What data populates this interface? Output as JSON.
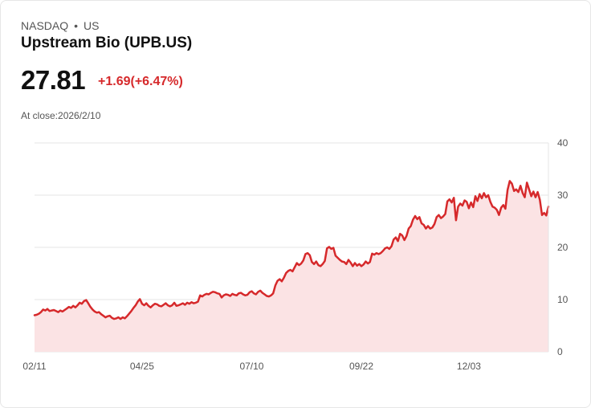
{
  "header": {
    "exchange": "NASDAQ",
    "region": "US",
    "title": "Upstream Bio (UPB.US)",
    "price": "27.81",
    "change": "+1.69(+6.47%)",
    "close_label": "At close:2026/2/10"
  },
  "colors": {
    "line": "#d6292b",
    "fill": "#fbe3e4",
    "grid": "#e6e6e6"
  },
  "chart_data": {
    "type": "area",
    "title": "",
    "xlabel": "",
    "ylabel": "",
    "ylim": [
      0,
      40
    ],
    "y_ticks": [
      0,
      10,
      20,
      30,
      40
    ],
    "x_tick_labels": [
      {
        "label": "02/11",
        "index": 0
      },
      {
        "label": "04/25",
        "index": 50
      },
      {
        "label": "07/10",
        "index": 101
      },
      {
        "label": "09/22",
        "index": 152
      },
      {
        "label": "12/03",
        "index": 202
      }
    ],
    "series": [
      {
        "name": "UPB.US",
        "values": [
          7.0,
          7.1,
          7.3,
          7.6,
          8.1,
          7.9,
          8.2,
          7.8,
          7.9,
          8.0,
          7.8,
          7.6,
          7.9,
          7.7,
          8.0,
          8.3,
          8.6,
          8.4,
          8.8,
          8.5,
          8.9,
          9.4,
          9.2,
          9.7,
          9.9,
          9.3,
          8.6,
          8.1,
          7.7,
          7.5,
          7.6,
          7.2,
          6.9,
          6.6,
          6.8,
          6.9,
          6.5,
          6.3,
          6.4,
          6.6,
          6.3,
          6.6,
          6.4,
          6.8,
          7.3,
          7.8,
          8.4,
          8.9,
          9.6,
          10.1,
          9.2,
          8.9,
          9.3,
          8.8,
          8.5,
          8.9,
          9.2,
          9.1,
          8.8,
          8.7,
          9.0,
          9.3,
          8.9,
          8.7,
          8.9,
          9.4,
          8.8,
          8.9,
          9.1,
          9.3,
          9.0,
          9.4,
          9.2,
          9.5,
          9.3,
          9.4,
          9.6,
          10.8,
          10.6,
          10.9,
          11.1,
          11.0,
          11.3,
          11.5,
          11.4,
          11.2,
          11.1,
          10.4,
          10.8,
          11.0,
          10.9,
          10.7,
          11.1,
          10.9,
          10.8,
          11.2,
          11.3,
          11.0,
          10.8,
          10.9,
          11.4,
          11.6,
          11.2,
          11.0,
          11.5,
          11.7,
          11.3,
          11.0,
          10.7,
          10.6,
          10.8,
          11.2,
          12.7,
          13.6,
          13.9,
          13.5,
          14.2,
          15.1,
          15.5,
          15.7,
          15.4,
          16.2,
          17.0,
          16.6,
          16.9,
          17.5,
          18.7,
          18.9,
          18.5,
          17.2,
          16.8,
          17.3,
          16.6,
          16.4,
          16.8,
          17.4,
          19.8,
          20.1,
          19.7,
          19.9,
          18.4,
          18.0,
          17.6,
          17.3,
          17.2,
          16.8,
          17.6,
          17.1,
          16.4,
          17.0,
          16.5,
          16.8,
          16.4,
          16.7,
          17.3,
          16.9,
          17.2,
          18.8,
          18.6,
          18.9,
          18.7,
          18.9,
          19.3,
          19.8,
          20.0,
          19.7,
          20.2,
          21.5,
          21.9,
          21.2,
          22.6,
          22.3,
          21.4,
          22.2,
          23.6,
          24.1,
          25.3,
          26.0,
          25.4,
          25.8,
          24.6,
          24.3,
          23.6,
          24.1,
          23.6,
          23.8,
          24.5,
          25.8,
          26.2,
          25.6,
          25.9,
          26.4,
          28.8,
          29.2,
          28.6,
          29.5,
          25.2,
          27.8,
          28.4,
          28.0,
          29.0,
          28.7,
          27.5,
          28.6,
          27.7,
          29.8,
          28.9,
          30.2,
          29.4,
          30.4,
          29.6,
          30.0,
          28.7,
          27.8,
          27.6,
          27.2,
          26.2,
          27.6,
          28.1,
          27.4,
          31.0,
          32.7,
          32.2,
          30.8,
          31.1,
          30.6,
          31.8,
          30.4,
          29.6,
          32.4,
          31.1,
          29.8,
          30.7,
          29.6,
          30.6,
          29.1,
          26.2,
          26.6,
          26.1,
          27.81
        ]
      }
    ]
  }
}
